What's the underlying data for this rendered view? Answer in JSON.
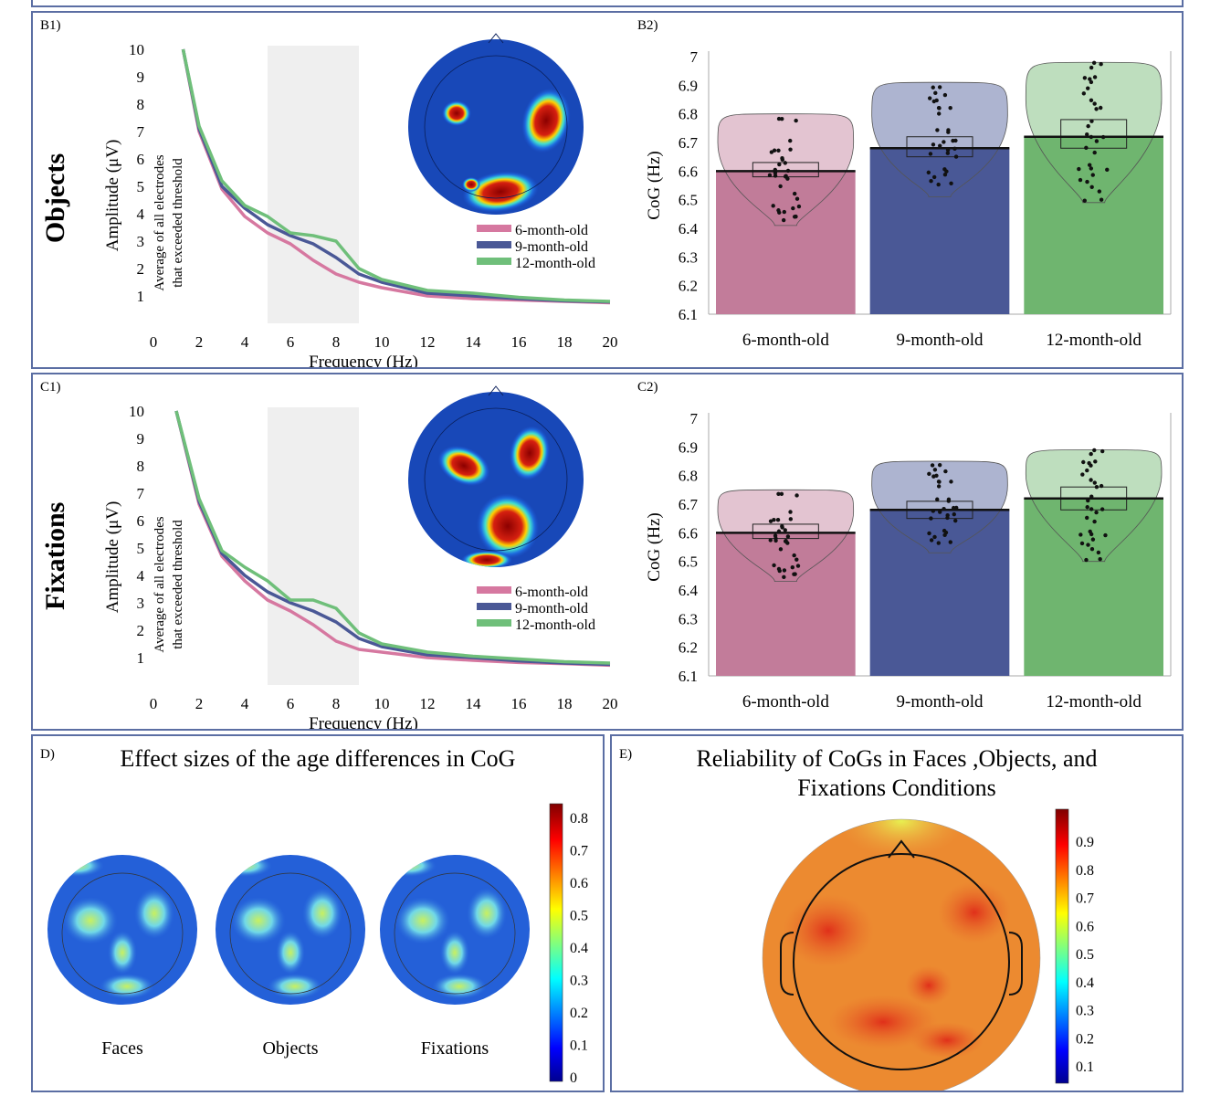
{
  "top_strip": {},
  "panels": {
    "B": {
      "side_title": "Objects",
      "b1_label": "B1)",
      "b2_label": "B2)"
    },
    "C": {
      "side_title": "Fixations",
      "c1_label": "C1)",
      "c2_label": "C2)"
    },
    "D": {
      "label": "D)",
      "title": "Effect sizes of the age differences in CoG",
      "head_labels": [
        "Faces",
        "Objects",
        "Fixations"
      ],
      "colorbar_ticks": [
        "0",
        "0.1",
        "0.2",
        "0.3",
        "0.4",
        "0.5",
        "0.6",
        "0.7",
        "0.8"
      ]
    },
    "E": {
      "label": "E)",
      "title_line1": "Reliability of CoGs in Faces ,Objects, and",
      "title_line2": "Fixations Conditions",
      "colorbar_ticks": [
        "0.1",
        "0.2",
        "0.3",
        "0.4",
        "0.5",
        "0.6",
        "0.7",
        "0.8",
        "0.9"
      ]
    }
  },
  "chart_data": [
    {
      "id": "B1",
      "type": "line",
      "xlabel": "Frequency (Hz)",
      "ylabel": "Amplitude (μV)",
      "ylabel2_line1": "Average of all electrodes",
      "ylabel2_line2": "that exceeded threshold",
      "xlim": [
        0,
        20
      ],
      "ylim": [
        0,
        10
      ],
      "xticks": [
        0,
        2,
        4,
        6,
        8,
        10,
        12,
        14,
        16,
        18,
        20
      ],
      "yticks": [
        1,
        2,
        3,
        4,
        5,
        6,
        7,
        8,
        9,
        10
      ],
      "shaded_band": [
        5,
        9
      ],
      "colors": [
        "#d678a0",
        "#4a5896",
        "#6fbf7a"
      ],
      "x": [
        1.3,
        2,
        3,
        4,
        5,
        6,
        7,
        8,
        9,
        10,
        12,
        14,
        16,
        18,
        20
      ],
      "series": [
        {
          "name": "6-month-old",
          "values": [
            10,
            7.0,
            4.9,
            3.9,
            3.3,
            2.9,
            2.3,
            1.8,
            1.5,
            1.3,
            1.0,
            0.9,
            0.85,
            0.8,
            0.75
          ]
        },
        {
          "name": "9-month-old",
          "values": [
            10,
            7.1,
            5.0,
            4.2,
            3.6,
            3.2,
            2.9,
            2.4,
            1.8,
            1.5,
            1.1,
            1.0,
            0.9,
            0.82,
            0.78
          ]
        },
        {
          "name": "12-month-old",
          "values": [
            10,
            7.2,
            5.2,
            4.3,
            3.9,
            3.3,
            3.2,
            3.0,
            2.0,
            1.6,
            1.2,
            1.1,
            0.95,
            0.85,
            0.8
          ]
        }
      ]
    },
    {
      "id": "B2",
      "type": "bar",
      "ylabel": "CoG (Hz)",
      "ylim": [
        6.1,
        7.0
      ],
      "yticks": [
        "6.1",
        "6.2",
        "6.3",
        "6.4",
        "6.5",
        "6.6",
        "6.7",
        "6.8",
        "6.9",
        "7"
      ],
      "categories": [
        "6-month-old",
        "9-month-old",
        "12-month-old"
      ],
      "values": [
        6.6,
        6.68,
        6.72
      ],
      "ci_low": [
        6.58,
        6.65,
        6.68
      ],
      "ci_high": [
        6.63,
        6.72,
        6.78
      ],
      "range_low": [
        6.41,
        6.51,
        6.49
      ],
      "range_high": [
        6.8,
        6.91,
        6.98
      ],
      "colors": [
        "#c27c9a",
        "#4a5896",
        "#6fb56f"
      ]
    },
    {
      "id": "C1",
      "type": "line",
      "xlabel": "Frequency (Hz)",
      "ylabel": "Amplitude (μV)",
      "ylabel2_line1": "Average of all electrodes",
      "ylabel2_line2": "that exceeded threshold",
      "xlim": [
        0,
        20
      ],
      "ylim": [
        0,
        10
      ],
      "xticks": [
        0,
        2,
        4,
        6,
        8,
        10,
        12,
        14,
        16,
        18,
        20
      ],
      "yticks": [
        1,
        2,
        3,
        4,
        5,
        6,
        7,
        8,
        9,
        10
      ],
      "shaded_band": [
        5,
        9
      ],
      "colors": [
        "#d678a0",
        "#4a5896",
        "#6fbf7a"
      ],
      "x": [
        1.0,
        2,
        3,
        4,
        5,
        6,
        7,
        8,
        9,
        10,
        12,
        14,
        16,
        18,
        20
      ],
      "series": [
        {
          "name": "6-month-old",
          "values": [
            10,
            6.6,
            4.7,
            3.8,
            3.1,
            2.7,
            2.2,
            1.6,
            1.3,
            1.2,
            1.0,
            0.9,
            0.82,
            0.78,
            0.72
          ]
        },
        {
          "name": "9-month-old",
          "values": [
            10,
            6.7,
            4.8,
            4.0,
            3.4,
            3.0,
            2.7,
            2.3,
            1.7,
            1.4,
            1.1,
            1.0,
            0.88,
            0.8,
            0.75
          ]
        },
        {
          "name": "12-month-old",
          "values": [
            10,
            6.8,
            4.9,
            4.3,
            3.8,
            3.1,
            3.1,
            2.8,
            1.9,
            1.5,
            1.2,
            1.05,
            0.95,
            0.85,
            0.8
          ]
        }
      ]
    },
    {
      "id": "C2",
      "type": "bar",
      "ylabel": "CoG (Hz)",
      "ylim": [
        6.1,
        7.0
      ],
      "yticks": [
        "6.1",
        "6.2",
        "6.3",
        "6.4",
        "6.5",
        "6.6",
        "6.7",
        "6.8",
        "6.9",
        "7"
      ],
      "categories": [
        "6-month-old",
        "9-month-old",
        "12-month-old"
      ],
      "values": [
        6.6,
        6.68,
        6.72
      ],
      "ci_low": [
        6.58,
        6.65,
        6.68
      ],
      "ci_high": [
        6.63,
        6.71,
        6.76
      ],
      "range_low": [
        6.43,
        6.53,
        6.5
      ],
      "range_high": [
        6.75,
        6.85,
        6.89
      ],
      "colors": [
        "#c27c9a",
        "#4a5896",
        "#6fb56f"
      ]
    }
  ]
}
